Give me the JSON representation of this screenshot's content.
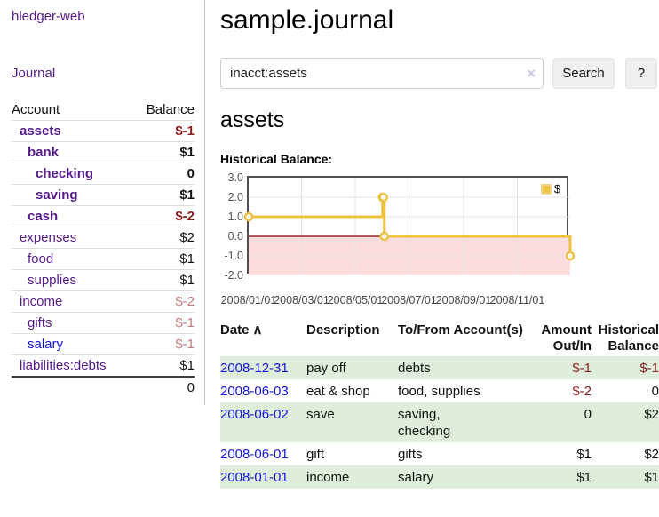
{
  "app": {
    "brand": "hledger-web",
    "nav": {
      "journal": "Journal"
    }
  },
  "colors": {
    "link_purple": "#551a8b",
    "link_blue": "#1515dd",
    "negative_strong": "#8b1c1c",
    "negative_dim": "#bb7b7b",
    "row_green": "#deeeda",
    "chart_gold": "#edc240",
    "chart_negative_fill": "#fbdddd",
    "zero_line": "#8b0000"
  },
  "sidebar": {
    "header": {
      "account": "Account",
      "balance": "Balance"
    },
    "accounts": [
      {
        "name": "assets",
        "balance": "$-1",
        "indent": 1,
        "strong": true
      },
      {
        "name": "bank",
        "balance": "$1",
        "indent": 2,
        "strong": true
      },
      {
        "name": "checking",
        "balance": "0",
        "indent": 3,
        "strong": true
      },
      {
        "name": "saving",
        "balance": "$1",
        "indent": 3,
        "strong": true
      },
      {
        "name": "cash",
        "balance": "$-2",
        "indent": 2,
        "strong": true
      },
      {
        "name": "expenses",
        "balance": "$2",
        "indent": 1
      },
      {
        "name": "food",
        "balance": "$1",
        "indent": 2
      },
      {
        "name": "supplies",
        "balance": "$1",
        "indent": 2
      },
      {
        "name": "income",
        "balance": "$-2",
        "indent": 1
      },
      {
        "name": "gifts",
        "balance": "$-1",
        "indent": 2
      },
      {
        "name": "salary",
        "balance": "$-1",
        "indent": 2,
        "blue": true
      },
      {
        "name": "liabilities:debts",
        "balance": "$1",
        "indent": 1
      }
    ],
    "total": "0"
  },
  "main": {
    "title": "sample.journal",
    "search": {
      "value": "inacct:assets",
      "clear": "×",
      "submit": "Search",
      "help": "?"
    },
    "heading": "assets",
    "chart_label": "Historical Balance:"
  },
  "chart_data": {
    "type": "line",
    "step": true,
    "title": "Historical Balance of assets",
    "x_range": [
      "2008-01-01",
      "2008-12-31"
    ],
    "ylim": [
      -2,
      3
    ],
    "y_ticks": [
      {
        "v": 3,
        "label": "3.0"
      },
      {
        "v": 2,
        "label": "2.0"
      },
      {
        "v": 1,
        "label": "1.0"
      },
      {
        "v": 0,
        "label": "0.0"
      },
      {
        "v": -1,
        "label": "-1.0"
      },
      {
        "v": -2,
        "label": "-2.0"
      }
    ],
    "x_ticks": [
      {
        "date": "2008-01-01",
        "label": "2008/01/01"
      },
      {
        "date": "2008-03-01",
        "label": "2008/03/01"
      },
      {
        "date": "2008-05-01",
        "label": "2008/05/01"
      },
      {
        "date": "2008-07-01",
        "label": "2008/07/01"
      },
      {
        "date": "2008-09-01",
        "label": "2008/09/01"
      },
      {
        "date": "2008-11-01",
        "label": "2008/11/01"
      }
    ],
    "series": [
      {
        "name": "$",
        "color": "#edc240",
        "points": [
          [
            "2008-01-01",
            1
          ],
          [
            "2008-06-01",
            2
          ],
          [
            "2008-06-02",
            2
          ],
          [
            "2008-06-03",
            0
          ],
          [
            "2008-12-31",
            -1
          ]
        ]
      }
    ],
    "grid": true,
    "legend_position": "top-right",
    "negative_region": true
  },
  "register": {
    "sort_icon": "∧",
    "headers": [
      "Date",
      "Description",
      "To/From Account(s)",
      "Amount Out/In",
      "Historical Balance"
    ],
    "rows": [
      {
        "date": "2008-12-31",
        "description": "pay off",
        "accounts": "debts",
        "amount": "$-1",
        "balance": "$-1"
      },
      {
        "date": "2008-06-03",
        "description": "eat & shop",
        "accounts": "food, supplies",
        "amount": "$-2",
        "balance": "0"
      },
      {
        "date": "2008-06-02",
        "description": "save",
        "accounts": "saving, checking",
        "amount": "0",
        "balance": "$2"
      },
      {
        "date": "2008-06-01",
        "description": "gift",
        "accounts": "gifts",
        "amount": "$1",
        "balance": "$2"
      },
      {
        "date": "2008-01-01",
        "description": "income",
        "accounts": "salary",
        "amount": "$1",
        "balance": "$1"
      }
    ]
  }
}
